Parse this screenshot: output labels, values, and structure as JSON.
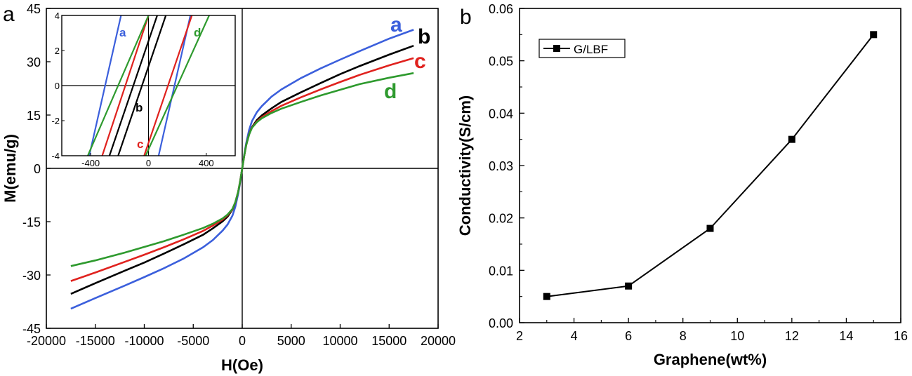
{
  "chart_data": [
    {
      "type": "line",
      "panel_label": "a",
      "xlabel": "H(Oe)",
      "ylabel": "M(emu/g)",
      "xlim": [
        -20000,
        20000
      ],
      "ylim": [
        -45,
        45
      ],
      "x_ticks": [
        -20000,
        -15000,
        -10000,
        -5000,
        0,
        5000,
        10000,
        15000,
        20000
      ],
      "y_ticks": [
        -45,
        -30,
        -15,
        0,
        15,
        30,
        45
      ],
      "series": [
        {
          "name": "a",
          "color": "#3b5fdc",
          "x": [
            -17500,
            -15000,
            -12000,
            -10000,
            -8000,
            -6000,
            -4000,
            -3000,
            -2000,
            -1500,
            -1000,
            -700,
            -400,
            -200,
            0,
            200,
            400,
            700,
            1000,
            1500,
            2000,
            3000,
            4000,
            6000,
            8000,
            10000,
            12000,
            15000,
            17500
          ],
          "y": [
            -39.5,
            -36.5,
            -33,
            -30.6,
            -28.1,
            -25.4,
            -22.2,
            -20.2,
            -17.5,
            -15.8,
            -13.3,
            -10.8,
            -7,
            -3.8,
            0,
            3.8,
            7,
            10.8,
            13.3,
            15.8,
            17.5,
            20.2,
            22.2,
            25.4,
            28.1,
            30.6,
            33,
            36.5,
            39
          ]
        },
        {
          "name": "b",
          "color": "#000000",
          "x": [
            -17500,
            -15000,
            -12000,
            -10000,
            -8000,
            -6000,
            -4000,
            -3000,
            -2000,
            -1500,
            -1000,
            -700,
            -400,
            -200,
            0,
            200,
            400,
            700,
            1000,
            1500,
            2000,
            3000,
            4000,
            6000,
            8000,
            10000,
            12000,
            15000,
            17500
          ],
          "y": [
            -35.3,
            -32.3,
            -28.8,
            -26.5,
            -24,
            -21.4,
            -18.7,
            -16.9,
            -14.9,
            -13.6,
            -11.6,
            -9.6,
            -6.5,
            -3.5,
            0,
            3.5,
            6.5,
            9.6,
            11.6,
            13.6,
            14.9,
            16.9,
            18.7,
            21.4,
            24,
            26.5,
            28.8,
            32,
            34.5
          ]
        },
        {
          "name": "c",
          "color": "#e0221e",
          "x": [
            -17500,
            -15000,
            -12000,
            -10000,
            -8000,
            -6000,
            -4000,
            -3000,
            -2000,
            -1500,
            -1000,
            -700,
            -400,
            -200,
            0,
            200,
            400,
            700,
            1000,
            1500,
            2000,
            3000,
            4000,
            6000,
            8000,
            10000,
            12000,
            15000,
            17500
          ],
          "y": [
            -31.7,
            -29.3,
            -26.3,
            -24.3,
            -22.2,
            -20,
            -17.6,
            -16.1,
            -14.4,
            -13.2,
            -11.5,
            -9.6,
            -6.5,
            -3.5,
            0,
            3.5,
            6.5,
            9.6,
            11.5,
            13.2,
            14.4,
            16.1,
            17.6,
            20,
            22.2,
            24.3,
            26.3,
            29,
            31
          ]
        },
        {
          "name": "d",
          "color": "#2e9a2e",
          "x": [
            -17500,
            -15000,
            -12000,
            -10000,
            -8000,
            -6000,
            -4000,
            -3000,
            -2000,
            -1500,
            -1000,
            -700,
            -400,
            -200,
            0,
            200,
            400,
            700,
            1000,
            1500,
            2000,
            3000,
            4000,
            6000,
            8000,
            10000,
            12000,
            15000,
            17500
          ],
          "y": [
            -27.5,
            -25.9,
            -23.7,
            -22.1,
            -20.5,
            -18.7,
            -16.8,
            -15.6,
            -14.1,
            -13,
            -11.4,
            -9.5,
            -6.5,
            -3.5,
            0,
            3.5,
            6.5,
            9.5,
            11.4,
            13,
            14.1,
            15.6,
            16.8,
            18.7,
            20.5,
            22.1,
            23.7,
            25.5,
            26.8
          ]
        }
      ],
      "curve_labels": [
        "a",
        "b",
        "c",
        "d"
      ],
      "inset": {
        "xlim": [
          -600,
          600
        ],
        "ylim": [
          -4,
          4
        ],
        "x_ticks": [
          -400,
          0,
          400
        ],
        "y_ticks": [
          -4,
          -2,
          0,
          2,
          4
        ],
        "x_tick_labels": [
          "-400",
          "0",
          "400"
        ],
        "y_tick_labels": [
          "-4",
          "-2",
          "0",
          "2",
          "4"
        ],
        "series": [
          {
            "name": "a",
            "color": "#3b5fdc",
            "branches": [
              {
                "x": [
                  -410,
                  -190
                ],
                "y": [
                  -4,
                  4
                ]
              },
              {
                "x": [
                  70,
                  290
                ],
                "y": [
                  -4,
                  4
                ]
              }
            ]
          },
          {
            "name": "b",
            "color": "#000000",
            "branches": [
              {
                "x": [
                  -270,
                  60
                ],
                "y": [
                  -4,
                  4
                ]
              },
              {
                "x": [
                  -210,
                  120
                ],
                "y": [
                  -4,
                  4
                ]
              }
            ]
          },
          {
            "name": "c",
            "color": "#e0221e",
            "branches": [
              {
                "x": [
                  -320,
                  0
                ],
                "y": [
                  -4,
                  4
                ]
              },
              {
                "x": [
                  -30,
                  300
                ],
                "y": [
                  -4,
                  4
                ]
              }
            ]
          },
          {
            "name": "d",
            "color": "#2e9a2e",
            "branches": [
              {
                "x": [
                  -420,
                  0
                ],
                "y": [
                  -4,
                  4
                ]
              },
              {
                "x": [
                  -20,
                  420
                ],
                "y": [
                  -4,
                  4
                ]
              }
            ]
          }
        ],
        "curve_labels": [
          "a",
          "d",
          "b",
          "c"
        ]
      }
    },
    {
      "type": "line",
      "panel_label": "b",
      "xlabel": "Graphene(wt%)",
      "ylabel": "Conductivity(S/cm)",
      "xlim": [
        2,
        16
      ],
      "ylim": [
        0,
        0.06
      ],
      "x_ticks": [
        2,
        4,
        6,
        8,
        10,
        12,
        14,
        16
      ],
      "y_ticks": [
        0.0,
        0.01,
        0.02,
        0.03,
        0.04,
        0.05,
        0.06
      ],
      "x_tick_labels": [
        "2",
        "4",
        "6",
        "8",
        "10",
        "12",
        "14",
        "16"
      ],
      "y_tick_labels": [
        "0.00",
        "0.01",
        "0.02",
        "0.03",
        "0.04",
        "0.05",
        "0.06"
      ],
      "legend_position": "top-left",
      "series": [
        {
          "name": "G/LBF",
          "color": "#000000",
          "marker": "square",
          "x": [
            3,
            6,
            9,
            12,
            15
          ],
          "y": [
            0.005,
            0.007,
            0.018,
            0.035,
            0.055
          ]
        }
      ]
    }
  ]
}
